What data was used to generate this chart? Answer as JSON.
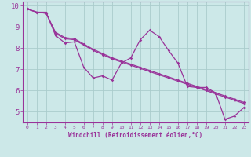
{
  "xlabel": "Windchill (Refroidissement éolien,°C)",
  "bg_color": "#cce8e8",
  "grid_color": "#aacccc",
  "line_color": "#993399",
  "xlim": [
    -0.5,
    23.5
  ],
  "ylim": [
    4.5,
    10.2
  ],
  "xticks": [
    0,
    1,
    2,
    3,
    4,
    5,
    6,
    7,
    8,
    9,
    10,
    11,
    12,
    13,
    14,
    15,
    16,
    17,
    18,
    19,
    20,
    21,
    22,
    23
  ],
  "yticks": [
    5,
    6,
    7,
    8,
    9,
    10
  ],
  "line1_x": [
    0,
    1,
    2,
    3,
    4,
    5,
    6,
    7,
    8,
    9,
    10,
    11,
    12,
    13,
    14,
    15,
    16,
    17,
    18,
    19,
    20,
    21,
    22,
    23
  ],
  "line1_y": [
    9.85,
    9.7,
    9.7,
    8.6,
    8.25,
    8.3,
    7.1,
    6.6,
    6.7,
    6.5,
    7.3,
    7.55,
    8.4,
    8.85,
    8.55,
    7.9,
    7.3,
    6.2,
    6.15,
    6.15,
    5.9,
    4.65,
    4.8,
    5.2
  ],
  "line2_x": [
    0,
    1,
    2,
    3,
    4,
    5,
    6,
    7,
    8,
    9,
    10,
    11,
    12,
    13,
    14,
    15,
    16,
    17,
    18,
    19,
    20,
    21,
    22,
    23
  ],
  "line2_y": [
    9.85,
    9.7,
    9.65,
    8.75,
    8.5,
    8.45,
    8.2,
    7.95,
    7.75,
    7.55,
    7.4,
    7.25,
    7.1,
    6.95,
    6.8,
    6.65,
    6.5,
    6.35,
    6.2,
    6.05,
    5.9,
    5.75,
    5.6,
    5.45
  ],
  "line3_x": [
    0,
    1,
    2,
    3,
    4,
    5,
    6,
    7,
    8,
    9,
    10,
    11,
    12,
    13,
    14,
    15,
    16,
    17,
    18,
    19,
    20,
    21,
    22,
    23
  ],
  "line3_y": [
    9.85,
    9.7,
    9.65,
    8.7,
    8.45,
    8.4,
    8.15,
    7.9,
    7.7,
    7.5,
    7.35,
    7.2,
    7.05,
    6.9,
    6.75,
    6.6,
    6.45,
    6.3,
    6.15,
    6.0,
    5.85,
    5.7,
    5.55,
    5.4
  ],
  "marker": "D",
  "markersize": 1.8,
  "linewidth": 0.9
}
